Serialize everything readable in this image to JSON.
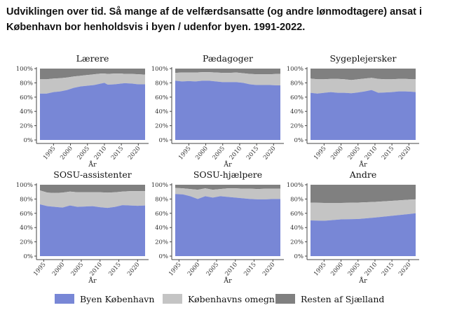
{
  "chart_data": {
    "title": "Udviklingen over tid. Så mange af de velfærdsansatte (og andre lønmodtagere) ansat i København bor henholdsvis i byen / udenfor byen. 1991-2022.",
    "type": "area",
    "stacked": true,
    "xlabel": "År",
    "ylabel": "",
    "ylim": [
      0,
      100
    ],
    "yticks": [
      "0%",
      "20%",
      "40%",
      "60%",
      "80%",
      "100%"
    ],
    "xticks": [
      1995,
      2000,
      2005,
      2010,
      2015,
      2020
    ],
    "legend_position": "bottom",
    "series_names": [
      "Byen København",
      "Københavns omegn",
      "Resten af Sjælland"
    ],
    "colors": {
      "Byen København": "#7887d6",
      "Københavns omegn": "#c4c4c4",
      "Resten af Sjælland": "#808080"
    },
    "panels": [
      {
        "title": "Lærere",
        "xlim": [
          1991,
          2022
        ],
        "x": [
          1991,
          1993,
          1995,
          1997,
          1999,
          2001,
          2003,
          2005,
          2007,
          2009,
          2010,
          2011,
          2013,
          2015,
          2016,
          2018,
          2020,
          2022
        ],
        "byen": [
          65,
          65,
          67,
          68,
          70,
          73,
          75,
          76,
          77,
          79,
          80,
          77.5,
          78,
          79,
          79.5,
          79,
          78,
          78
        ],
        "byen_plus_omegn": [
          85,
          85,
          86,
          86.5,
          87.5,
          89,
          90,
          91,
          92,
          93,
          93,
          92.5,
          93,
          93,
          92.5,
          92.5,
          92,
          91.5
        ]
      },
      {
        "title": "Pædagoger",
        "xlim": [
          1991,
          2022
        ],
        "x": [
          1991,
          1993,
          1995,
          1997,
          1999,
          2001,
          2003,
          2005,
          2007,
          2009,
          2011,
          2013,
          2015,
          2017,
          2019,
          2021,
          2022
        ],
        "byen": [
          83,
          82,
          82.5,
          82,
          83,
          83,
          82,
          81,
          81,
          81,
          80,
          78,
          77,
          77,
          77,
          76.5,
          76.5
        ],
        "byen_plus_omegn": [
          94,
          94.5,
          94.5,
          94.5,
          95,
          95,
          94.5,
          94,
          94,
          94.5,
          93.5,
          92.5,
          92,
          92,
          92,
          92.5,
          92.5
        ]
      },
      {
        "title": "Sygeplejersker",
        "xlim": [
          1991,
          2022
        ],
        "x": [
          1991,
          1993,
          1995,
          1997,
          1999,
          2001,
          2003,
          2005,
          2007,
          2009,
          2011,
          2013,
          2015,
          2017,
          2019,
          2021,
          2022
        ],
        "byen": [
          66,
          65,
          66,
          67,
          66,
          66,
          65.5,
          66.5,
          68,
          70,
          66,
          66.5,
          67,
          68,
          68,
          67.5,
          67
        ],
        "byen_plus_omegn": [
          86,
          85,
          85,
          85.5,
          85.5,
          85,
          84,
          85,
          86,
          87,
          85.5,
          85,
          85,
          85.5,
          85.5,
          85,
          85
        ]
      },
      {
        "title": "SOSU-assistenter",
        "xlim": [
          1994,
          2022
        ],
        "x": [
          1994,
          1996,
          1998,
          2000,
          2002,
          2004,
          2006,
          2008,
          2010,
          2012,
          2014,
          2016,
          2018,
          2020,
          2022
        ],
        "byen": [
          72.5,
          70,
          69,
          68,
          71,
          69,
          69.5,
          70,
          68.5,
          67.5,
          69,
          71.5,
          71,
          70.5,
          71
        ],
        "byen_plus_omegn": [
          92,
          89,
          88.5,
          89,
          90.5,
          89.5,
          89.5,
          89.5,
          89.5,
          89,
          89.5,
          90.5,
          91,
          91,
          91
        ]
      },
      {
        "title": "SOSU-hjælpere",
        "xlim": [
          1994,
          2022
        ],
        "x": [
          1994,
          1996,
          1998,
          2000,
          2002,
          2004,
          2006,
          2008,
          2010,
          2012,
          2014,
          2016,
          2018,
          2020,
          2022
        ],
        "byen": [
          87,
          86.5,
          84,
          80,
          84,
          82,
          84,
          83,
          82,
          81,
          80,
          79.5,
          79.5,
          80,
          80
        ],
        "byen_plus_omegn": [
          95.5,
          95,
          94,
          93,
          95,
          93,
          94,
          95,
          95,
          94.5,
          94.5,
          94,
          94.5,
          94.5,
          94.5
        ]
      },
      {
        "title": "Andre",
        "xlim": [
          1991,
          2022
        ],
        "x": [
          1991,
          1995,
          2000,
          2005,
          2010,
          2015,
          2020,
          2022
        ],
        "byen": [
          50,
          49.5,
          51.5,
          52,
          54,
          56.5,
          59,
          60
        ],
        "byen_plus_omegn": [
          75,
          74.5,
          74.5,
          75,
          76,
          77.5,
          79,
          79.5
        ]
      }
    ]
  }
}
